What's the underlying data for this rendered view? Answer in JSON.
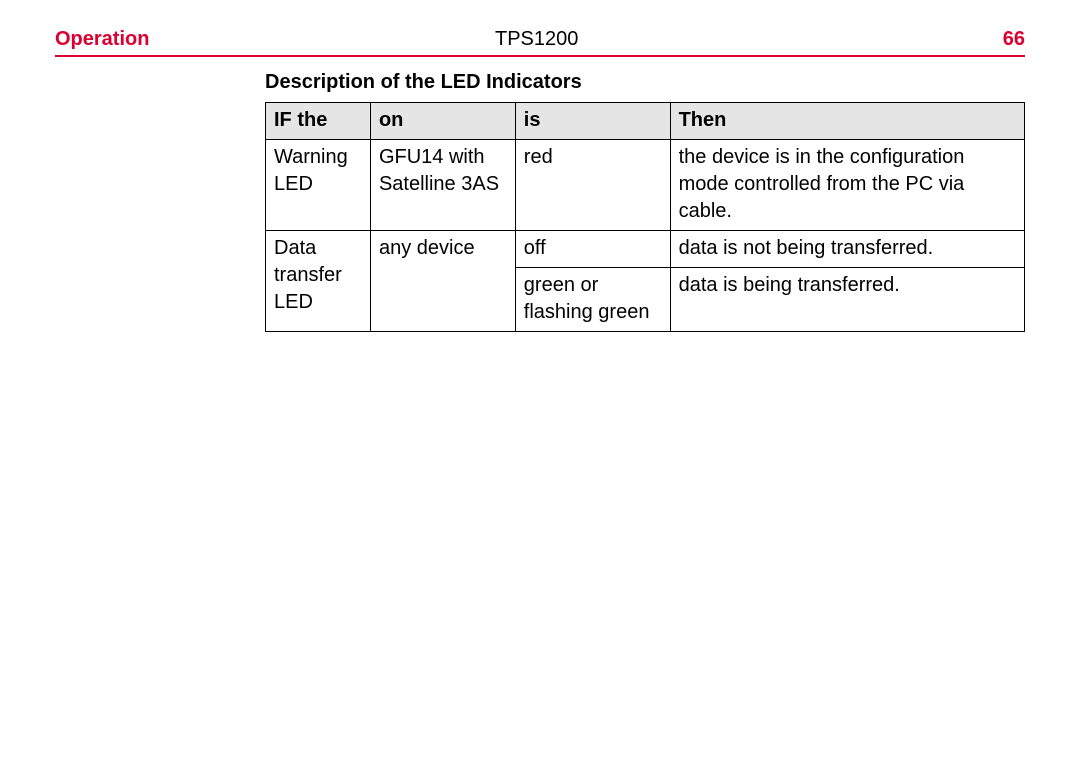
{
  "header": {
    "section": "Operation",
    "model": "TPS1200",
    "page": "66"
  },
  "section_title": "Description of the LED Indicators",
  "table": {
    "columns": [
      "IF the",
      "on",
      "is",
      "Then"
    ]
  },
  "cells": {
    "r1c1": "Warning LED",
    "r1c2": "GFU14 with Satelline 3AS",
    "r1c3": "red",
    "r1c4": "the device is in the configuration mode controlled from the PC via cable.",
    "r2c1": "Data transfer LED",
    "r2c2": "any device",
    "r2c3": "off",
    "r2c4": "data is not being transferred.",
    "r3c3": "green or flashing green",
    "r3c4": "data is being transferred."
  }
}
